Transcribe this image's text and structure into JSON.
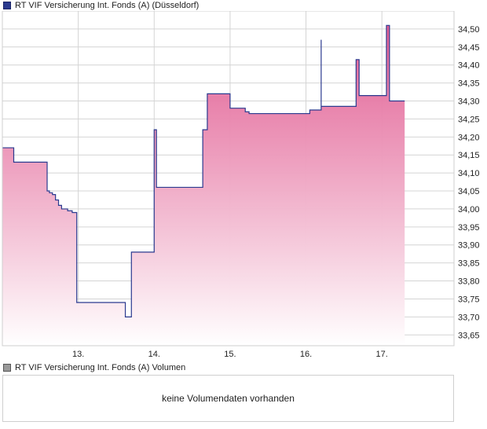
{
  "chart_data": {
    "type": "area",
    "title": "RT VIF Versicherung Int. Fonds (A) (Düsseldorf)",
    "xlabel": "",
    "ylabel": "",
    "x_ticks": [
      "13.",
      "14.",
      "15.",
      "16.",
      "17."
    ],
    "y_ticks": [
      "33,65",
      "33,70",
      "33,75",
      "33,80",
      "33,85",
      "33,90",
      "33,95",
      "34,00",
      "34,05",
      "34,10",
      "34,15",
      "34,20",
      "34,25",
      "34,30",
      "34,35",
      "34,40",
      "34,45",
      "34,50"
    ],
    "ylim": [
      33.62,
      34.55
    ],
    "xlim": [
      12.0,
      17.95
    ],
    "grid": true,
    "series": [
      {
        "name": "RT VIF Versicherung Int. Fonds (A) (Düsseldorf)",
        "x": [
          12.0,
          12.14,
          12.15,
          12.58,
          12.59,
          12.62,
          12.66,
          12.7,
          12.74,
          12.78,
          12.82,
          12.86,
          12.92,
          12.98,
          13.02,
          13.6,
          13.62,
          13.7,
          13.74,
          14.0,
          14.03,
          14.08,
          14.6,
          14.64,
          14.7,
          15.0,
          15.2,
          15.25,
          15.7,
          16.05,
          16.2,
          16.2,
          16.55,
          16.66,
          16.7,
          17.02,
          17.06,
          17.1,
          17.3
        ],
        "y": [
          34.17,
          34.17,
          34.13,
          34.13,
          34.05,
          34.045,
          34.04,
          34.025,
          34.01,
          34.0,
          34.0,
          33.995,
          33.99,
          33.74,
          33.74,
          33.74,
          33.7,
          33.88,
          33.88,
          34.22,
          34.06,
          34.06,
          34.06,
          34.22,
          34.32,
          34.28,
          34.27,
          34.265,
          34.265,
          34.275,
          34.47,
          34.285,
          34.285,
          34.415,
          34.315,
          34.315,
          34.51,
          34.3,
          34.3
        ]
      }
    ],
    "colors": {
      "line": "#2b3a8f",
      "fill_top": "#e0558d",
      "fill_bottom": "#ffffff",
      "grid": "#d4d4d4",
      "frame": "#cfcfcf"
    }
  },
  "volume": {
    "legend": "RT VIF Versicherung Int. Fonds (A) Volumen",
    "message": "keine Volumendaten vorhanden"
  }
}
